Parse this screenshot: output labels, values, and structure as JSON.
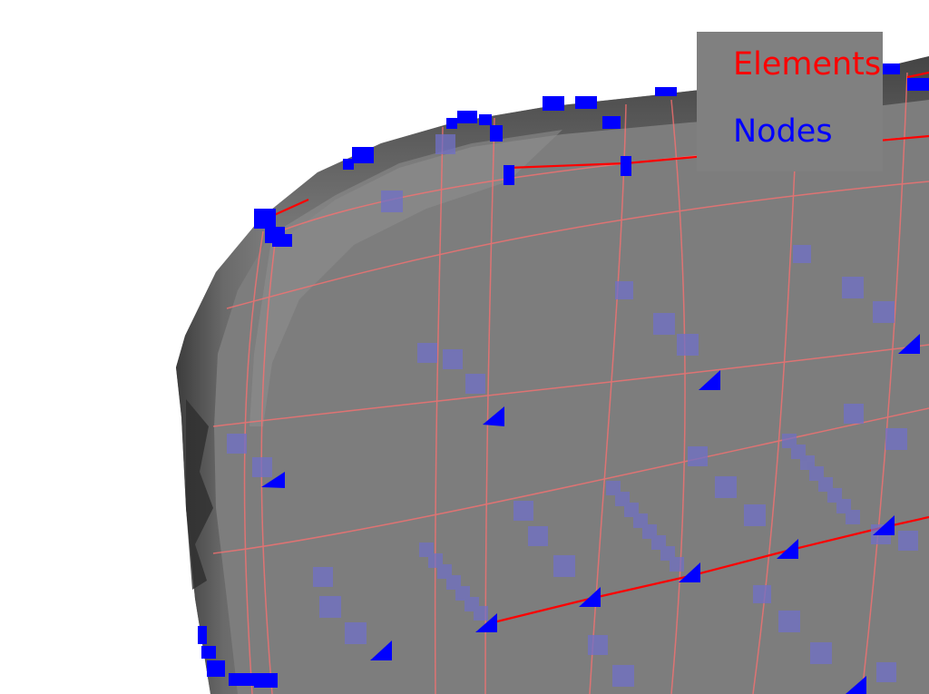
{
  "scene": {
    "background_color": "#ffffff",
    "mesh_color": "#7d7d7d",
    "element_line_color": "#ff0000",
    "node_color": "#0000ff"
  },
  "legend": {
    "items": [
      {
        "label": "Elements",
        "color": "#ff0000"
      },
      {
        "label": "Nodes",
        "color": "#0000ff"
      }
    ]
  }
}
